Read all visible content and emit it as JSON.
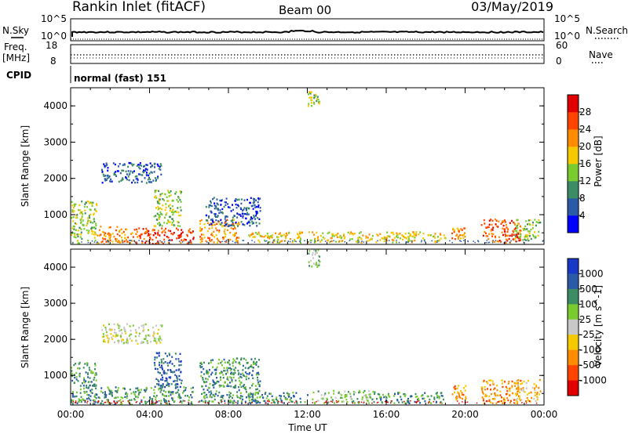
{
  "header": {
    "station": "Rankin Inlet (fitACF)",
    "beam": "Beam 00",
    "date": "03/May/2019"
  },
  "nsky_panel": {
    "left_label": "N.Sky",
    "right_label": "N.Search",
    "tick_top": "10^5",
    "tick_bottom": "10^0"
  },
  "freq_panel": {
    "left_label_1": "Freq.",
    "left_label_2": "[MHz]",
    "right_label": "Nave",
    "tick_left_top": "18",
    "tick_left_bottom": "8",
    "tick_right_top": "60",
    "tick_right_bottom": "0"
  },
  "cpid": {
    "label": "CPID",
    "mode": "normal (fast) 151"
  },
  "chart_data": [
    {
      "type": "heatmap",
      "title": "",
      "ylabel": "Slant Range [km]",
      "xlabel": "",
      "ylim": [
        180,
        4500
      ],
      "yticks": [
        "1000",
        "2000",
        "3000",
        "4000"
      ],
      "xlim_hours": [
        0,
        24
      ],
      "colorbar": {
        "label": "Power [dB]",
        "ticks": [
          "4",
          "8",
          "12",
          "16",
          "20",
          "24",
          "28"
        ],
        "colors": [
          "#0000ff",
          "#2a5aa8",
          "#3c8c64",
          "#7acc2e",
          "#f5c800",
          "#ff8c00",
          "#ff4400",
          "#e00000"
        ]
      },
      "regions": [
        {
          "t": [
            0.0,
            1.3
          ],
          "r": [
            200,
            1400
          ],
          "level": 3
        },
        {
          "t": [
            1.3,
            3.2
          ],
          "r": [
            200,
            700
          ],
          "level": 5
        },
        {
          "t": [
            3.2,
            6.2
          ],
          "r": [
            200,
            650
          ],
          "level": 6
        },
        {
          "t": [
            4.2,
            5.6
          ],
          "r": [
            700,
            1700
          ],
          "level": 3
        },
        {
          "t": [
            1.5,
            4.6
          ],
          "r": [
            1900,
            2450
          ],
          "level": 1
        },
        {
          "t": [
            6.5,
            8.5
          ],
          "r": [
            250,
            900
          ],
          "level": 5
        },
        {
          "t": [
            6.8,
            9.6
          ],
          "r": [
            700,
            1500
          ],
          "level": 1
        },
        {
          "t": [
            9.0,
            12.2
          ],
          "r": [
            250,
            550
          ],
          "level": 4
        },
        {
          "t": [
            12.2,
            19.0
          ],
          "r": [
            250,
            550
          ],
          "level": 4
        },
        {
          "t": [
            19.3,
            20.0
          ],
          "r": [
            350,
            650
          ],
          "level": 5
        },
        {
          "t": [
            20.8,
            22.8
          ],
          "r": [
            250,
            900
          ],
          "level": 6
        },
        {
          "t": [
            22.5,
            23.8
          ],
          "r": [
            300,
            900
          ],
          "level": 3
        },
        {
          "t": [
            12.0,
            12.6
          ],
          "r": [
            4000,
            4500
          ],
          "level": 3
        }
      ]
    },
    {
      "type": "heatmap",
      "title": "",
      "ylabel": "Slant Range [km]",
      "xlabel": "Time UT",
      "ylim": [
        180,
        4500
      ],
      "yticks": [
        "1000",
        "2000",
        "3000",
        "4000"
      ],
      "xlim_hours": [
        0,
        24
      ],
      "xticks": [
        "00:00",
        "04:00",
        "08:00",
        "12:00",
        "16:00",
        "20:00",
        "00:00"
      ],
      "colorbar": {
        "label": "Velocity [m s^-1]",
        "ticks": [
          "1000",
          "500",
          "100",
          "25",
          "-25",
          "-100",
          "-500",
          "-1000"
        ],
        "colors": [
          "#1838c8",
          "#2a5aa8",
          "#3c8c64",
          "#7acc2e",
          "#c8c8c8",
          "#f5c800",
          "#ff8c00",
          "#ff4400",
          "#e00000"
        ]
      },
      "regions": [
        {
          "t": [
            0.0,
            1.3
          ],
          "r": [
            200,
            1400
          ],
          "level": 2
        },
        {
          "t": [
            1.3,
            6.2
          ],
          "r": [
            200,
            700
          ],
          "level": 2
        },
        {
          "t": [
            4.2,
            5.6
          ],
          "r": [
            700,
            1700
          ],
          "level": 1
        },
        {
          "t": [
            1.5,
            4.6
          ],
          "r": [
            1900,
            2450
          ],
          "level": 4
        },
        {
          "t": [
            6.5,
            9.6
          ],
          "r": [
            250,
            1500
          ],
          "level": 2
        },
        {
          "t": [
            9.0,
            12.0
          ],
          "r": [
            250,
            550
          ],
          "level": 2
        },
        {
          "t": [
            12.2,
            15.5
          ],
          "r": [
            250,
            600
          ],
          "level": 3
        },
        {
          "t": [
            15.5,
            19.0
          ],
          "r": [
            250,
            550
          ],
          "level": 2
        },
        {
          "t": [
            19.3,
            20.0
          ],
          "r": [
            350,
            750
          ],
          "level": 6
        },
        {
          "t": [
            20.8,
            22.8
          ],
          "r": [
            250,
            900
          ],
          "level": 6
        },
        {
          "t": [
            22.5,
            23.8
          ],
          "r": [
            300,
            900
          ],
          "level": 5
        },
        {
          "t": [
            12.0,
            12.6
          ],
          "r": [
            4000,
            4500
          ],
          "level": 3
        }
      ]
    }
  ]
}
